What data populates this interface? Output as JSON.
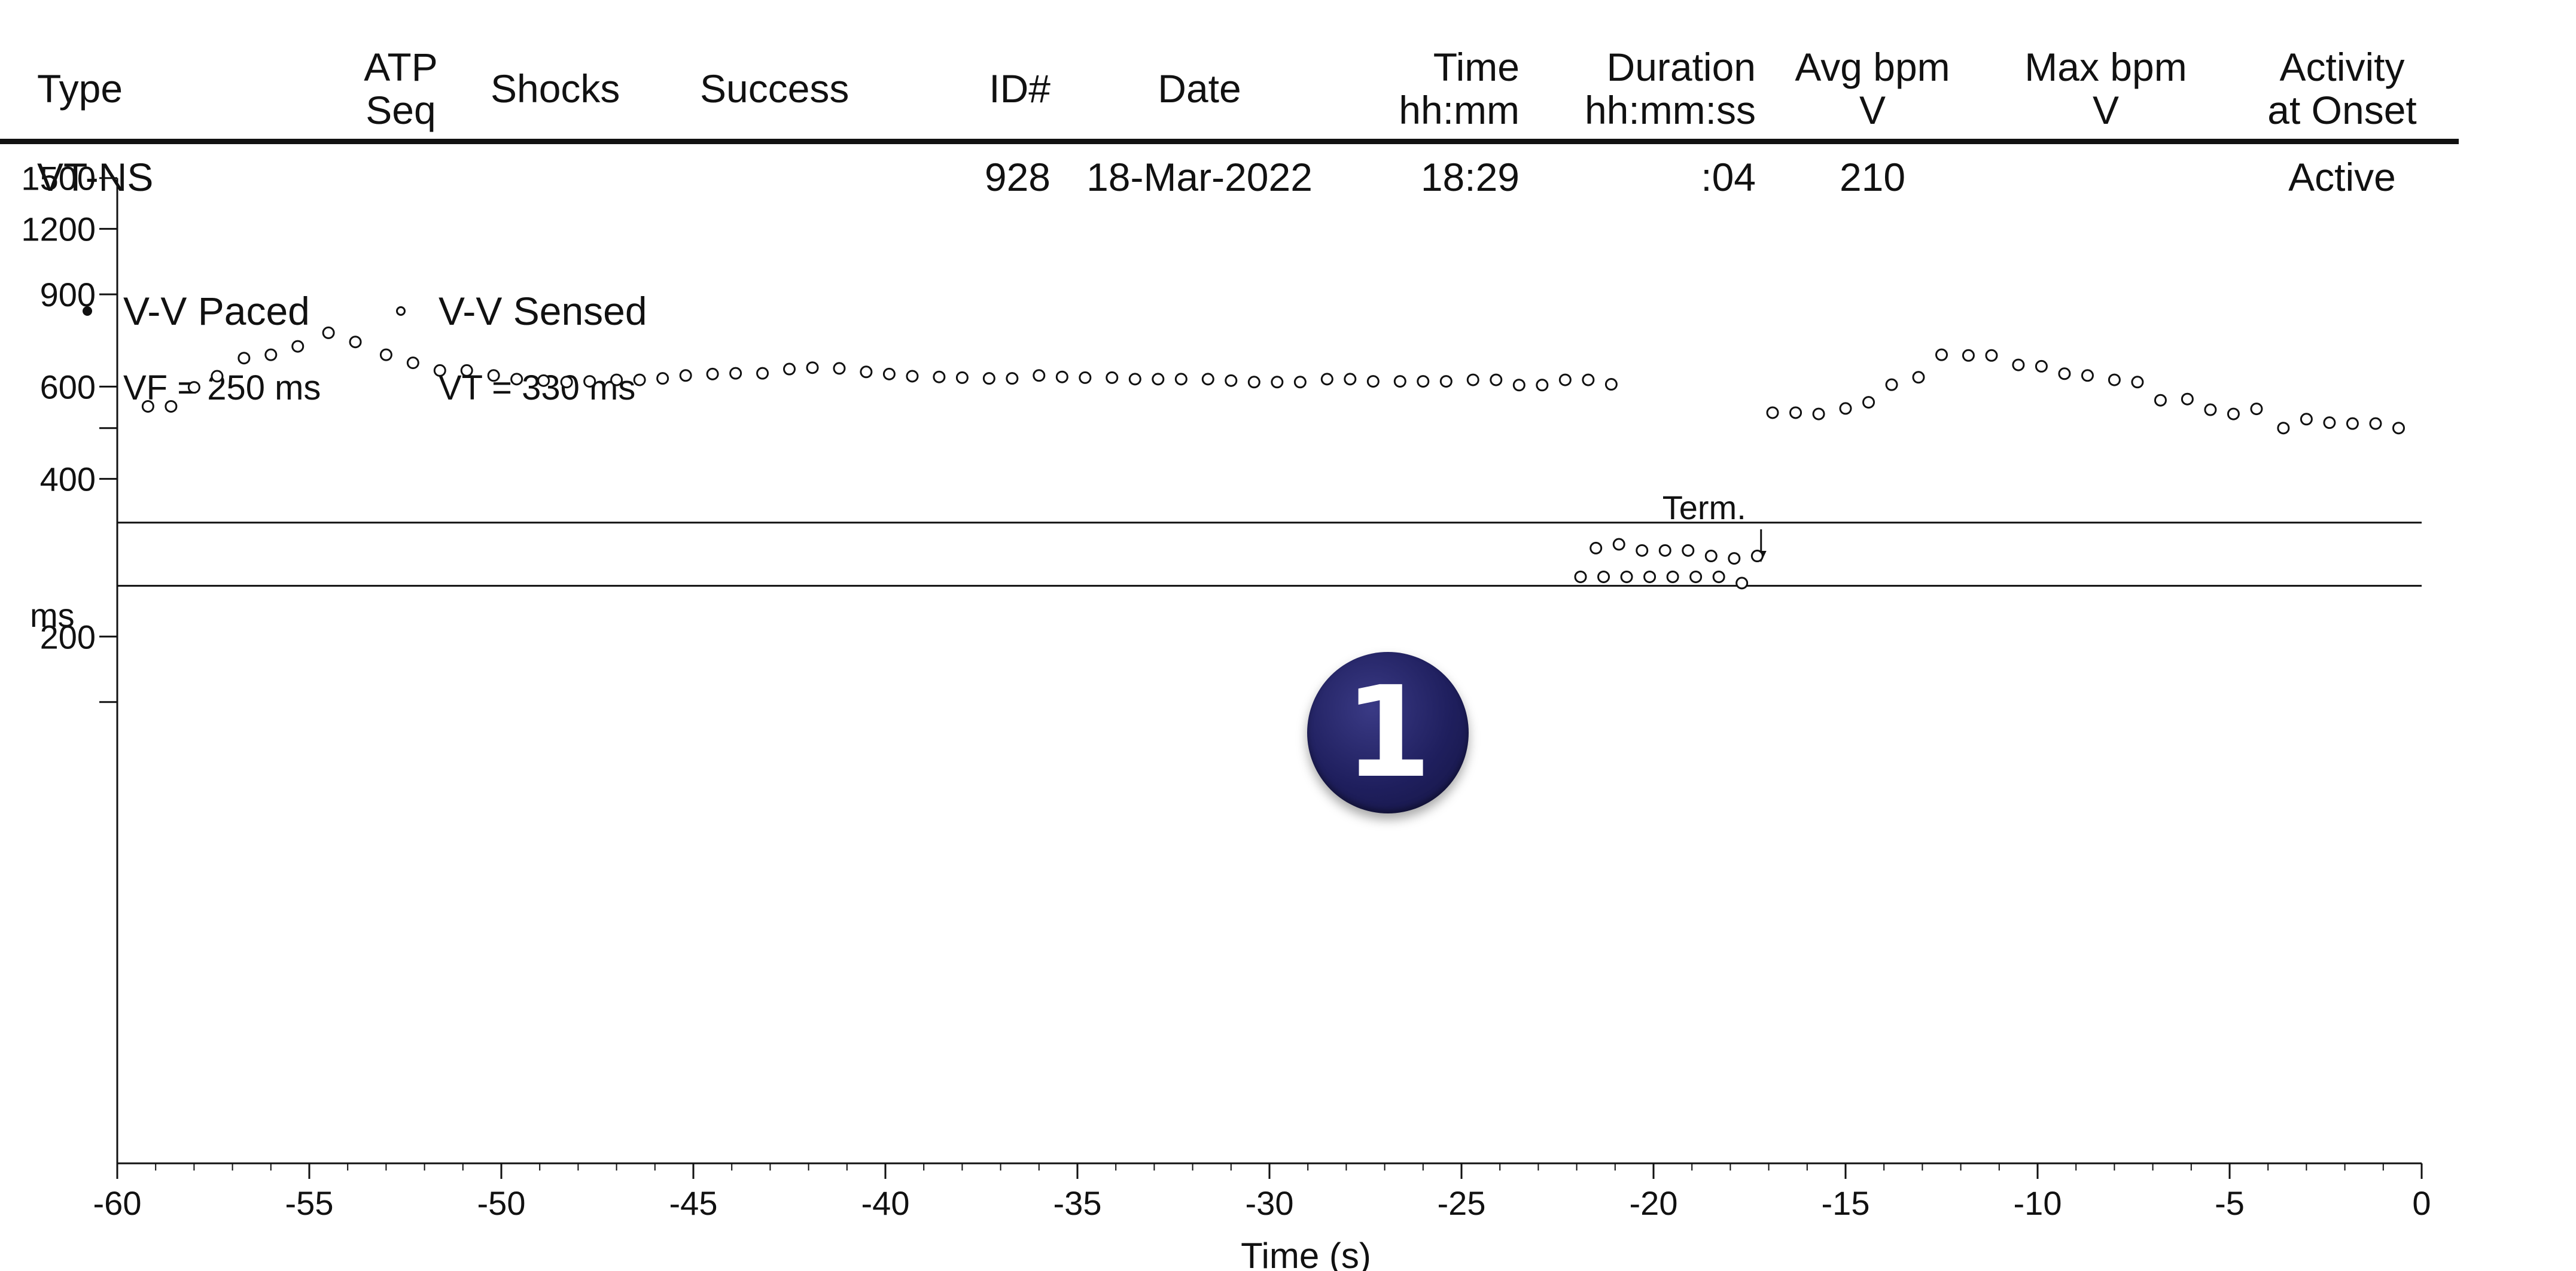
{
  "table": {
    "headers": {
      "type": "Type",
      "atp_seq": [
        "ATP",
        "Seq"
      ],
      "shocks": "Shocks",
      "success": "Success",
      "id": "ID#",
      "date": "Date",
      "time": [
        "Time",
        "hh:mm"
      ],
      "duration": [
        "Duration",
        "hh:mm:ss"
      ],
      "avg_bpm": [
        "Avg bpm",
        "V"
      ],
      "max_bpm": [
        "Max bpm",
        "V"
      ],
      "activity": [
        "Activity",
        "at Onset"
      ]
    },
    "row": {
      "type": "VT-NS",
      "atp_seq": "",
      "shocks": "",
      "success": "",
      "id": "928",
      "date": "18-Mar-2022",
      "time": "18:29",
      "duration": ":04",
      "avg_bpm": "210",
      "max_bpm": "",
      "activity": "Active"
    }
  },
  "legend": {
    "paced": "V-V Paced",
    "sensed": "V-V Sensed",
    "vf": "VF = 250 ms",
    "vt": "VT = 330 ms"
  },
  "badge": "1",
  "chart_data": {
    "type": "scatter",
    "title": "",
    "xlabel": "Time (s)",
    "ylabel": "ms",
    "xlim": [
      -60,
      0
    ],
    "ylim": [
      100,
      1500
    ],
    "y_scale": "log",
    "x_ticks": [
      -60,
      -55,
      -50,
      -45,
      -40,
      -35,
      -30,
      -25,
      -20,
      -15,
      -10,
      -5,
      0
    ],
    "y_tick_labels": [
      1500,
      1200,
      900,
      600,
      400,
      200
    ],
    "y_minor_ticks": [
      500,
      150
    ],
    "reference_lines": [
      {
        "name": "VT",
        "value": 330
      },
      {
        "name": "VF",
        "value": 250
      }
    ],
    "annotation": {
      "text": "Term.",
      "x": -17.2
    },
    "series": [
      {
        "name": "V-V Sensed",
        "marker": "open-circle",
        "points": [
          [
            -59.2,
            550
          ],
          [
            -58.6,
            550
          ],
          [
            -58.0,
            598
          ],
          [
            -57.4,
            628
          ],
          [
            -56.7,
            680
          ],
          [
            -56.0,
            690
          ],
          [
            -55.3,
            716
          ],
          [
            -54.5,
            760
          ],
          [
            -53.8,
            730
          ],
          [
            -53.0,
            690
          ],
          [
            -52.3,
            666
          ],
          [
            -51.6,
            644
          ],
          [
            -50.9,
            644
          ],
          [
            -50.2,
            630
          ],
          [
            -49.6,
            620
          ],
          [
            -48.9,
            616
          ],
          [
            -48.3,
            612
          ],
          [
            -47.7,
            614
          ],
          [
            -47.0,
            618
          ],
          [
            -46.4,
            618
          ],
          [
            -45.8,
            622
          ],
          [
            -45.2,
            630
          ],
          [
            -44.5,
            634
          ],
          [
            -43.9,
            636
          ],
          [
            -43.2,
            636
          ],
          [
            -42.5,
            648
          ],
          [
            -41.9,
            652
          ],
          [
            -41.2,
            650
          ],
          [
            -40.5,
            640
          ],
          [
            -39.9,
            634
          ],
          [
            -39.3,
            628
          ],
          [
            -38.6,
            626
          ],
          [
            -38.0,
            624
          ],
          [
            -37.3,
            622
          ],
          [
            -36.7,
            622
          ],
          [
            -36.0,
            630
          ],
          [
            -35.4,
            626
          ],
          [
            -34.8,
            624
          ],
          [
            -34.1,
            624
          ],
          [
            -33.5,
            620
          ],
          [
            -32.9,
            620
          ],
          [
            -32.3,
            620
          ],
          [
            -31.6,
            620
          ],
          [
            -31.0,
            616
          ],
          [
            -30.4,
            612
          ],
          [
            -29.8,
            612
          ],
          [
            -29.2,
            612
          ],
          [
            -28.5,
            620
          ],
          [
            -27.9,
            620
          ],
          [
            -27.3,
            614
          ],
          [
            -26.6,
            614
          ],
          [
            -26.0,
            614
          ],
          [
            -25.4,
            614
          ],
          [
            -24.7,
            618
          ],
          [
            -24.1,
            618
          ],
          [
            -23.5,
            604
          ],
          [
            -22.9,
            604
          ],
          [
            -22.3,
            618
          ],
          [
            -21.7,
            618
          ],
          [
            -21.1,
            606
          ],
          [
            -21.9,
            260
          ],
          [
            -21.5,
            295
          ],
          [
            -20.9,
            300
          ],
          [
            -20.3,
            292
          ],
          [
            -19.7,
            292
          ],
          [
            -19.1,
            292
          ],
          [
            -18.5,
            285
          ],
          [
            -17.9,
            282
          ],
          [
            -17.3,
            285
          ],
          [
            -21.3,
            260
          ],
          [
            -20.7,
            260
          ],
          [
            -20.1,
            260
          ],
          [
            -19.5,
            260
          ],
          [
            -18.9,
            260
          ],
          [
            -18.3,
            260
          ],
          [
            -17.7,
            253
          ],
          [
            -16.9,
            535
          ],
          [
            -16.3,
            535
          ],
          [
            -15.7,
            532
          ],
          [
            -15.0,
            545
          ],
          [
            -14.4,
            560
          ],
          [
            -13.8,
            605
          ],
          [
            -13.1,
            625
          ],
          [
            -12.5,
            690
          ],
          [
            -11.8,
            688
          ],
          [
            -11.2,
            688
          ],
          [
            -10.5,
            660
          ],
          [
            -9.9,
            656
          ],
          [
            -9.3,
            635
          ],
          [
            -8.7,
            630
          ],
          [
            -8.0,
            618
          ],
          [
            -7.4,
            612
          ],
          [
            -6.8,
            565
          ],
          [
            -6.1,
            568
          ],
          [
            -5.5,
            542
          ],
          [
            -4.9,
            532
          ],
          [
            -4.3,
            544
          ],
          [
            -3.6,
            500
          ],
          [
            -3.0,
            520
          ],
          [
            -2.4,
            512
          ],
          [
            -1.8,
            510
          ],
          [
            -1.2,
            510
          ],
          [
            -0.6,
            500
          ]
        ]
      },
      {
        "name": "V-V Paced",
        "marker": "filled-circle",
        "points": []
      }
    ]
  }
}
